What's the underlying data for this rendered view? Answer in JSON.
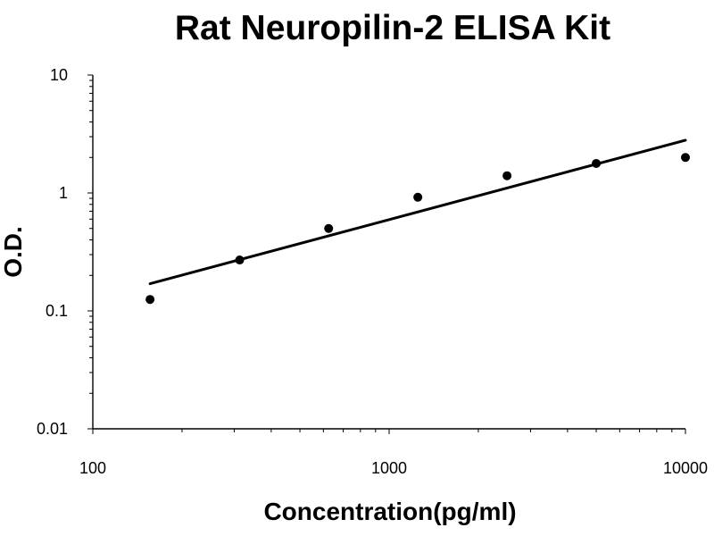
{
  "chart_data": {
    "type": "scatter",
    "title": "Rat Neuropilin-2 ELISA Kit",
    "xlabel": "Concentration(pg/ml)",
    "ylabel": "O.D.",
    "x_scale": "log",
    "y_scale": "log",
    "xlim": [
      100,
      10000
    ],
    "ylim": [
      0.01,
      10
    ],
    "x_ticks": [
      "100",
      "1000",
      "10000"
    ],
    "y_ticks": [
      "0.01",
      "0.1",
      "1",
      "10"
    ],
    "grid": false,
    "legend": "none",
    "series": [
      {
        "x": [
          156,
          313,
          625,
          1250,
          2500,
          5000,
          10000
        ],
        "y": [
          0.125,
          0.27,
          0.5,
          0.92,
          1.4,
          1.78,
          2.0
        ]
      }
    ],
    "trendline": {
      "type": "power",
      "x": [
        156,
        10000
      ],
      "y": [
        0.17,
        2.8
      ]
    },
    "colors": {
      "marker": "#000000",
      "line": "#000000",
      "axis": "#000000"
    }
  }
}
